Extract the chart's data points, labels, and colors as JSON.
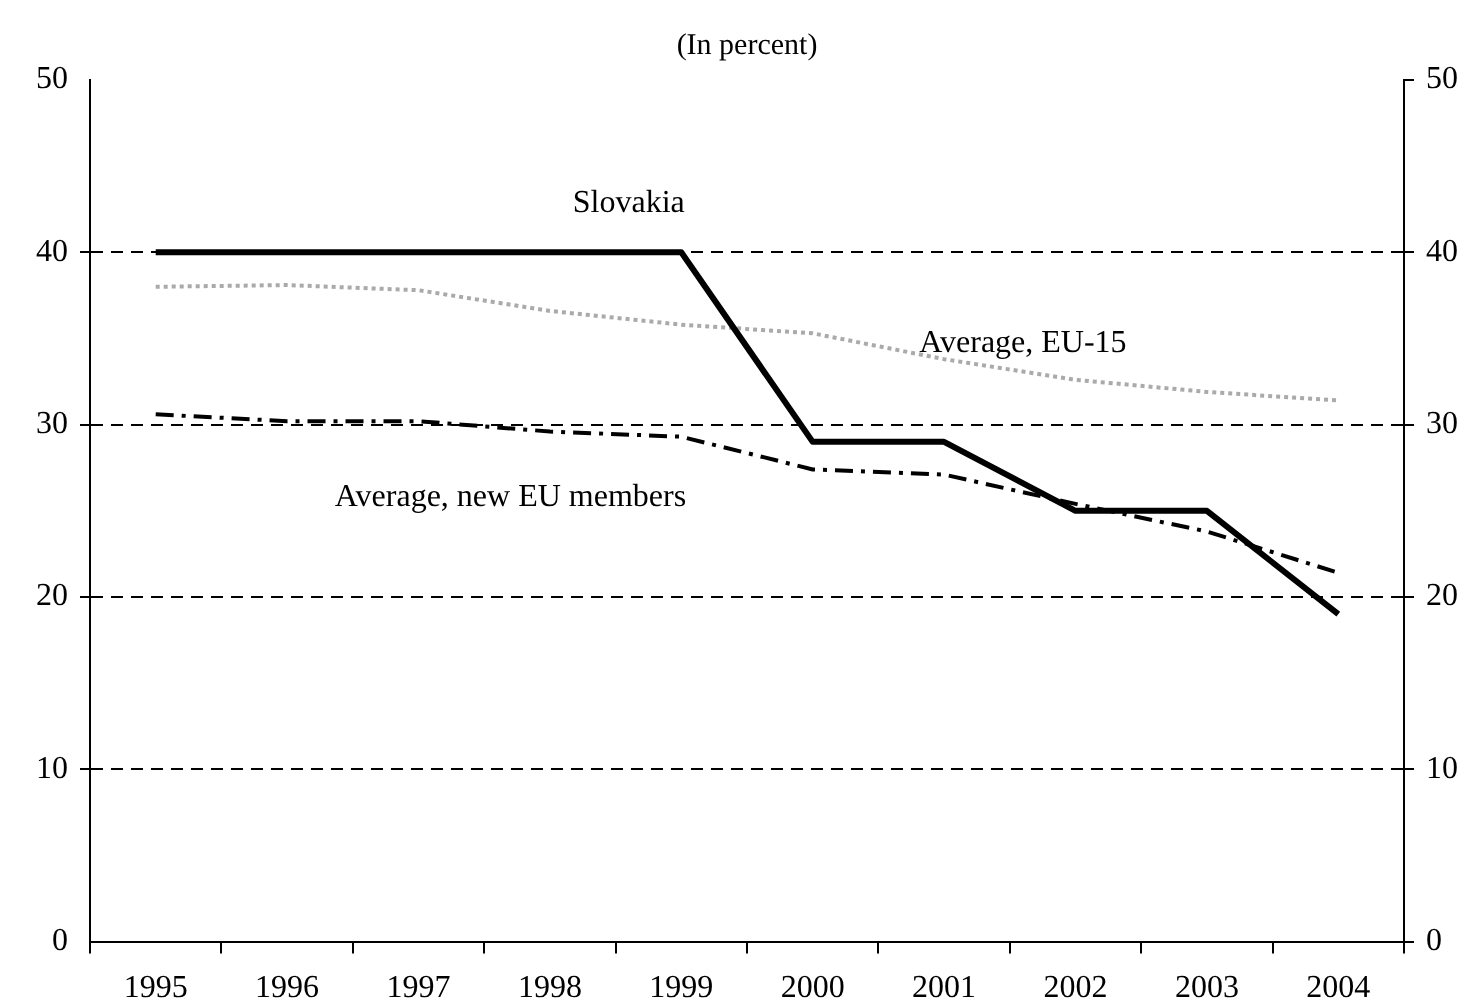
{
  "chart_data": {
    "type": "line",
    "title": "(In percent)",
    "categories": [
      "1995",
      "1996",
      "1997",
      "1998",
      "1999",
      "2000",
      "2001",
      "2002",
      "2003",
      "2004"
    ],
    "series": [
      {
        "name": "Slovakia",
        "color": "#000000",
        "line_style": "solid",
        "values": [
          40,
          40,
          40,
          40,
          40,
          29,
          29,
          25,
          25,
          19
        ]
      },
      {
        "name": "Average, EU-15",
        "color": "#aaaaaa",
        "line_style": "dotted",
        "values": [
          38,
          38.1,
          37.8,
          36.6,
          35.8,
          35.3,
          33.8,
          32.6,
          31.9,
          31.4
        ]
      },
      {
        "name": "Average, new EU members",
        "color": "#000000",
        "line_style": "dashed",
        "values": [
          30.6,
          30.2,
          30.2,
          29.6,
          29.3,
          27.4,
          27.1,
          25.4,
          23.8,
          21.4
        ]
      }
    ],
    "ylim": [
      0,
      50
    ],
    "yticks": [
      0,
      10,
      20,
      30,
      40,
      50
    ],
    "y2lim": [
      0,
      50
    ],
    "y2ticks": [
      0,
      10,
      20,
      30,
      40,
      50
    ],
    "grid": "y",
    "legend": false,
    "marker": "none"
  }
}
